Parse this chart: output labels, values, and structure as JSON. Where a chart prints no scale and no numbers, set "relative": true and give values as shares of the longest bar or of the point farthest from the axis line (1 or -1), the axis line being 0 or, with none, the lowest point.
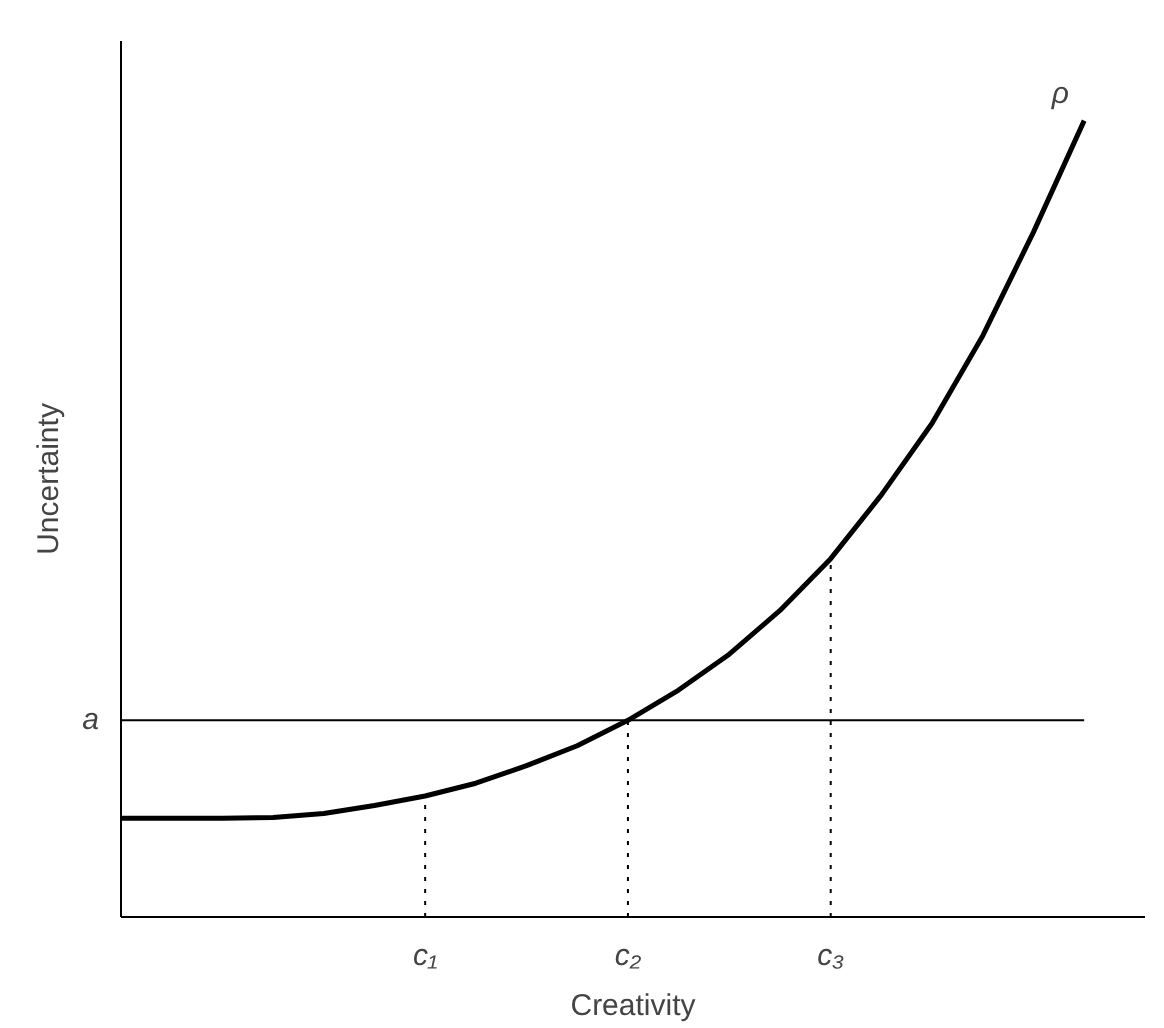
{
  "chart_data": {
    "type": "line",
    "relative": true,
    "xlabel": "Creativity",
    "ylabel": "Uncertainty",
    "categories": [
      null,
      null,
      null,
      null,
      null,
      null,
      "c₁",
      null,
      null,
      null,
      "c₂",
      null,
      null,
      null,
      "c₃",
      null,
      null,
      null,
      null,
      null
    ],
    "series": [
      {
        "name": "ρ",
        "color": "#000000",
        "values": [
          0.124,
          0.124,
          0.124,
          0.125,
          0.13,
          0.14,
          0.152,
          0.168,
          0.19,
          0.215,
          0.247,
          0.285,
          0.33,
          0.385,
          0.45,
          0.53,
          0.62,
          0.73,
          0.86,
          1.0
        ]
      }
    ],
    "ref_lines": [
      {
        "axis": "y",
        "value": 0.247,
        "label": "a",
        "line_style": "solid"
      },
      {
        "axis": "x",
        "value": "c₁",
        "line_style": "dotted"
      },
      {
        "axis": "x",
        "value": "c₂",
        "line_style": "dotted"
      },
      {
        "axis": "x",
        "value": "c₃",
        "line_style": "dotted"
      }
    ],
    "grid": false
  }
}
